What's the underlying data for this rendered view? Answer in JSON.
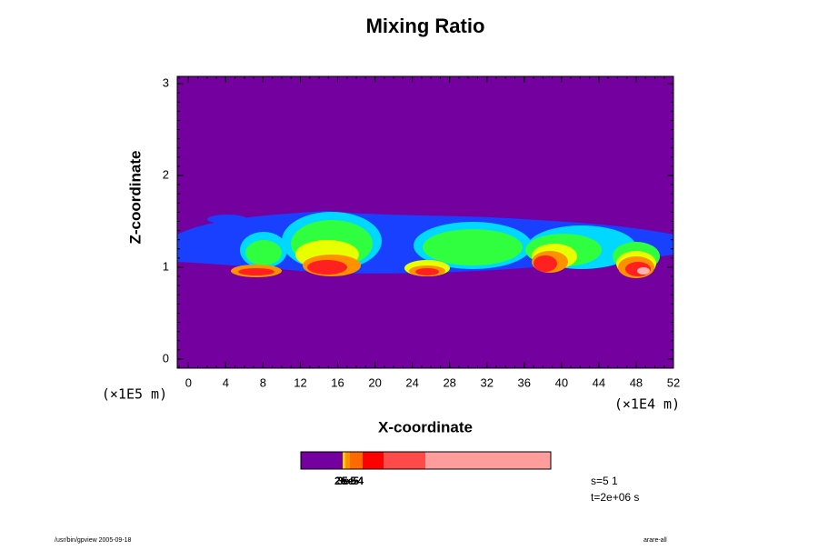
{
  "chart_data": {
    "type": "contour",
    "title": "Mixing Ratio",
    "x_label": "X-coordinate",
    "y_label": "Z-coordinate",
    "x_unit": "(×1E4 m)",
    "y_unit": "(×1E5 m)",
    "xlim": [
      -1.2,
      52
    ],
    "xticks": [
      0,
      4,
      8,
      12,
      16,
      20,
      24,
      28,
      32,
      36,
      40,
      44,
      48,
      52
    ],
    "ylim": [
      -0.1,
      3.08
    ],
    "yticks": [
      0,
      1,
      2,
      3
    ],
    "background_color": "#7400a0",
    "colorbar": {
      "colors": [
        "#7400a0",
        "#ffd000",
        "#ff9000",
        "#ff6a00",
        "#ff0000",
        "#ff4a4a",
        "#ff9d9d"
      ],
      "labels": [
        "2e-5",
        "3e-5",
        "5e-4"
      ]
    },
    "info": [
      "s=5 1",
      "t=2e+06 s"
    ],
    "footer_left": "/usr/bin/gpview 2005-09-18",
    "footer_right": "arare-all"
  }
}
